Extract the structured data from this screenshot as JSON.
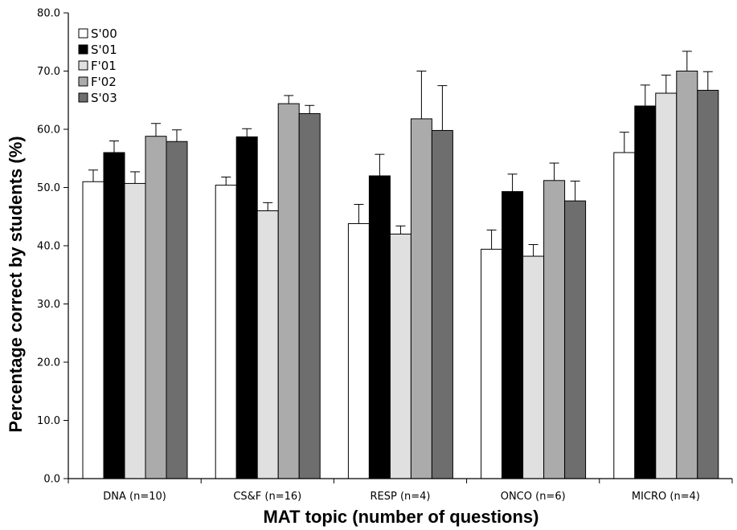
{
  "chart_data": {
    "type": "bar",
    "title": "",
    "xlabel": "MAT topic (number of questions)",
    "ylabel": "Percentage correct by students (%)",
    "ylim": [
      0,
      80
    ],
    "y_ticks": [
      "0.0",
      "10.0",
      "20.0",
      "30.0",
      "40.0",
      "50.0",
      "60.0",
      "70.0",
      "80.0"
    ],
    "categories": [
      "DNA (n=10)",
      "CS&F (n=16)",
      "RESP (n=4)",
      "ONCO (n=6)",
      "MICRO (n=4)"
    ],
    "legend_position": "top-left",
    "grid": false,
    "series": [
      {
        "name": "S'00",
        "color": "#ffffff",
        "values": [
          51.0,
          50.4,
          43.8,
          39.4,
          56.0
        ],
        "errors": [
          2.0,
          1.4,
          3.3,
          3.3,
          3.5
        ]
      },
      {
        "name": "S'01",
        "color": "#000000",
        "values": [
          56.0,
          58.7,
          52.0,
          49.3,
          64.0
        ],
        "errors": [
          2.0,
          1.4,
          3.7,
          3.0,
          3.6
        ]
      },
      {
        "name": "F'01",
        "color": "#e0e0e0",
        "values": [
          50.7,
          46.0,
          42.0,
          38.2,
          66.2
        ],
        "errors": [
          2.0,
          1.4,
          1.4,
          2.0,
          3.1
        ]
      },
      {
        "name": "F'02",
        "color": "#ababab",
        "values": [
          58.8,
          64.4,
          61.8,
          51.2,
          70.0
        ],
        "errors": [
          2.2,
          1.4,
          8.2,
          3.0,
          3.4
        ]
      },
      {
        "name": "S'03",
        "color": "#6e6e6e",
        "values": [
          57.9,
          62.7,
          59.8,
          47.7,
          66.7
        ],
        "errors": [
          2.0,
          1.4,
          7.7,
          3.4,
          3.2
        ]
      }
    ]
  }
}
